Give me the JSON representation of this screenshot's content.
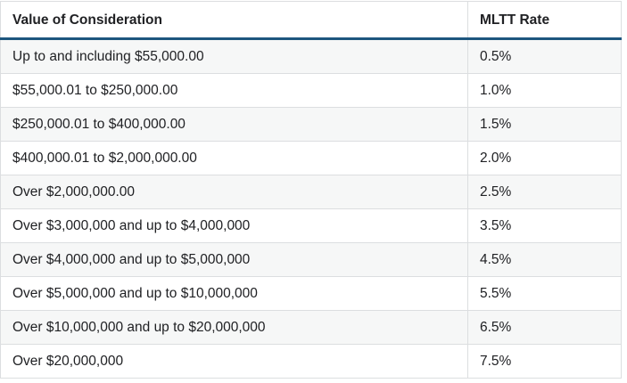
{
  "table": {
    "columns": [
      {
        "label": "Value of Consideration"
      },
      {
        "label": "MLTT Rate"
      }
    ],
    "rows": [
      {
        "value": "Up to and including $55,000.00",
        "rate": "0.5%"
      },
      {
        "value": "$55,000.01 to $250,000.00",
        "rate": "1.0%"
      },
      {
        "value": "$250,000.01 to $400,000.00",
        "rate": "1.5%"
      },
      {
        "value": "$400,000.01 to $2,000,000.00",
        "rate": "2.0%"
      },
      {
        "value": "Over $2,000,000.00",
        "rate": "2.5%"
      },
      {
        "value": "Over $3,000,000 and up to $4,000,000",
        "rate": "3.5%"
      },
      {
        "value": "Over $4,000,000 and up to $5,000,000",
        "rate": "4.5%"
      },
      {
        "value": "Over $5,000,000 and up to $10,000,000",
        "rate": "5.5%"
      },
      {
        "value": "Over $10,000,000 and up to $20,000,000",
        "rate": "6.5%"
      },
      {
        "value": "Over $20,000,000",
        "rate": "7.5%"
      }
    ],
    "colors": {
      "header_border": "#1d567e",
      "row_alt_bg": "#f6f7f7",
      "grid_border": "#dcdee0",
      "text": "#202124"
    }
  }
}
